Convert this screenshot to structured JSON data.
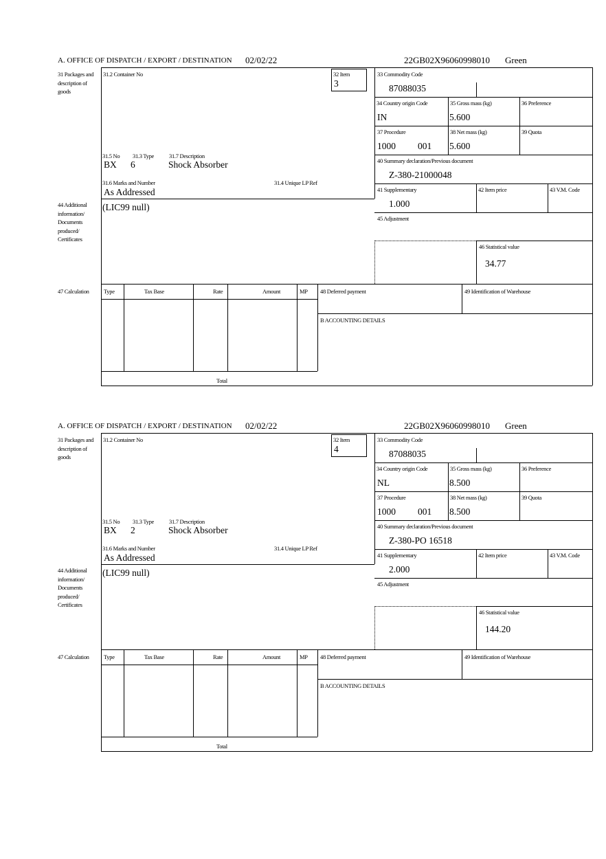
{
  "labels": {
    "office": "A.  OFFICE OF DISPATCH / EXPORT / DESTINATION",
    "f31": "31 Packages and description of goods",
    "f31_2": "31.2 Container No",
    "f32": "32 Item",
    "f31_5": "31.5 No",
    "f31_3": "31.3 Type",
    "f31_7": "31.7 Description",
    "f31_6": "31.6 Marks and Number",
    "f31_4": "31.4 Unique LP Ref",
    "f33": "33 Commodity Code",
    "f34": "34 Country origin Code",
    "f35": "35 Gross mass (kg)",
    "f36": "36 Preference",
    "f37": "37 Procedure",
    "f38": "38 Net mass (kg)",
    "f39": "39 Quota",
    "f40": "40 Summary declaration/Previous document",
    "f41": "41 Supplementary",
    "f42": "42 Item price",
    "f43": "43 V.M. Code",
    "f44": "44 Additional information/ Documents produced/ Certificates",
    "f45": "45 Adjustment",
    "f46": "46 Statistical value",
    "f47": "47 Calculation",
    "calc_type": "Type",
    "calc_taxbase": "Tax Base",
    "calc_rate": "Rate",
    "calc_amount": "Amount",
    "calc_mp": "MP",
    "calc_total": "Total",
    "f48": "48 Deferred payment",
    "f49": "49 Identification of Warehouse",
    "fB": "B ACCOUNTING DETAILS"
  },
  "items": [
    {
      "date": "02/02/22",
      "reference": "22GB02X96060998010",
      "route": "Green",
      "item_no": "3",
      "pkg_type": "BX",
      "pkg_no": "6",
      "description": "Shock Absorber",
      "marks": "As Addressed",
      "additional_info": "(LIC99 null)",
      "commodity_code": "87088035",
      "country_origin": "IN",
      "gross_mass": "5.600",
      "procedure": "1000",
      "procedure_add": "001",
      "net_mass": "5.600",
      "previous_document": "Z-380-21000048",
      "supplementary": "1.000",
      "statistical_value": "34.77"
    },
    {
      "date": "02/02/22",
      "reference": "22GB02X96060998010",
      "route": "Green",
      "item_no": "4",
      "pkg_type": "BX",
      "pkg_no": "2",
      "description": "Shock Absorber",
      "marks": "As Addressed",
      "additional_info": "(LIC99 null)",
      "commodity_code": "87088035",
      "country_origin": "NL",
      "gross_mass": "8.500",
      "procedure": "1000",
      "procedure_add": "001",
      "net_mass": "8.500",
      "previous_document": "Z-380-PO 16518",
      "supplementary": "2.000",
      "statistical_value": "144.20"
    }
  ]
}
